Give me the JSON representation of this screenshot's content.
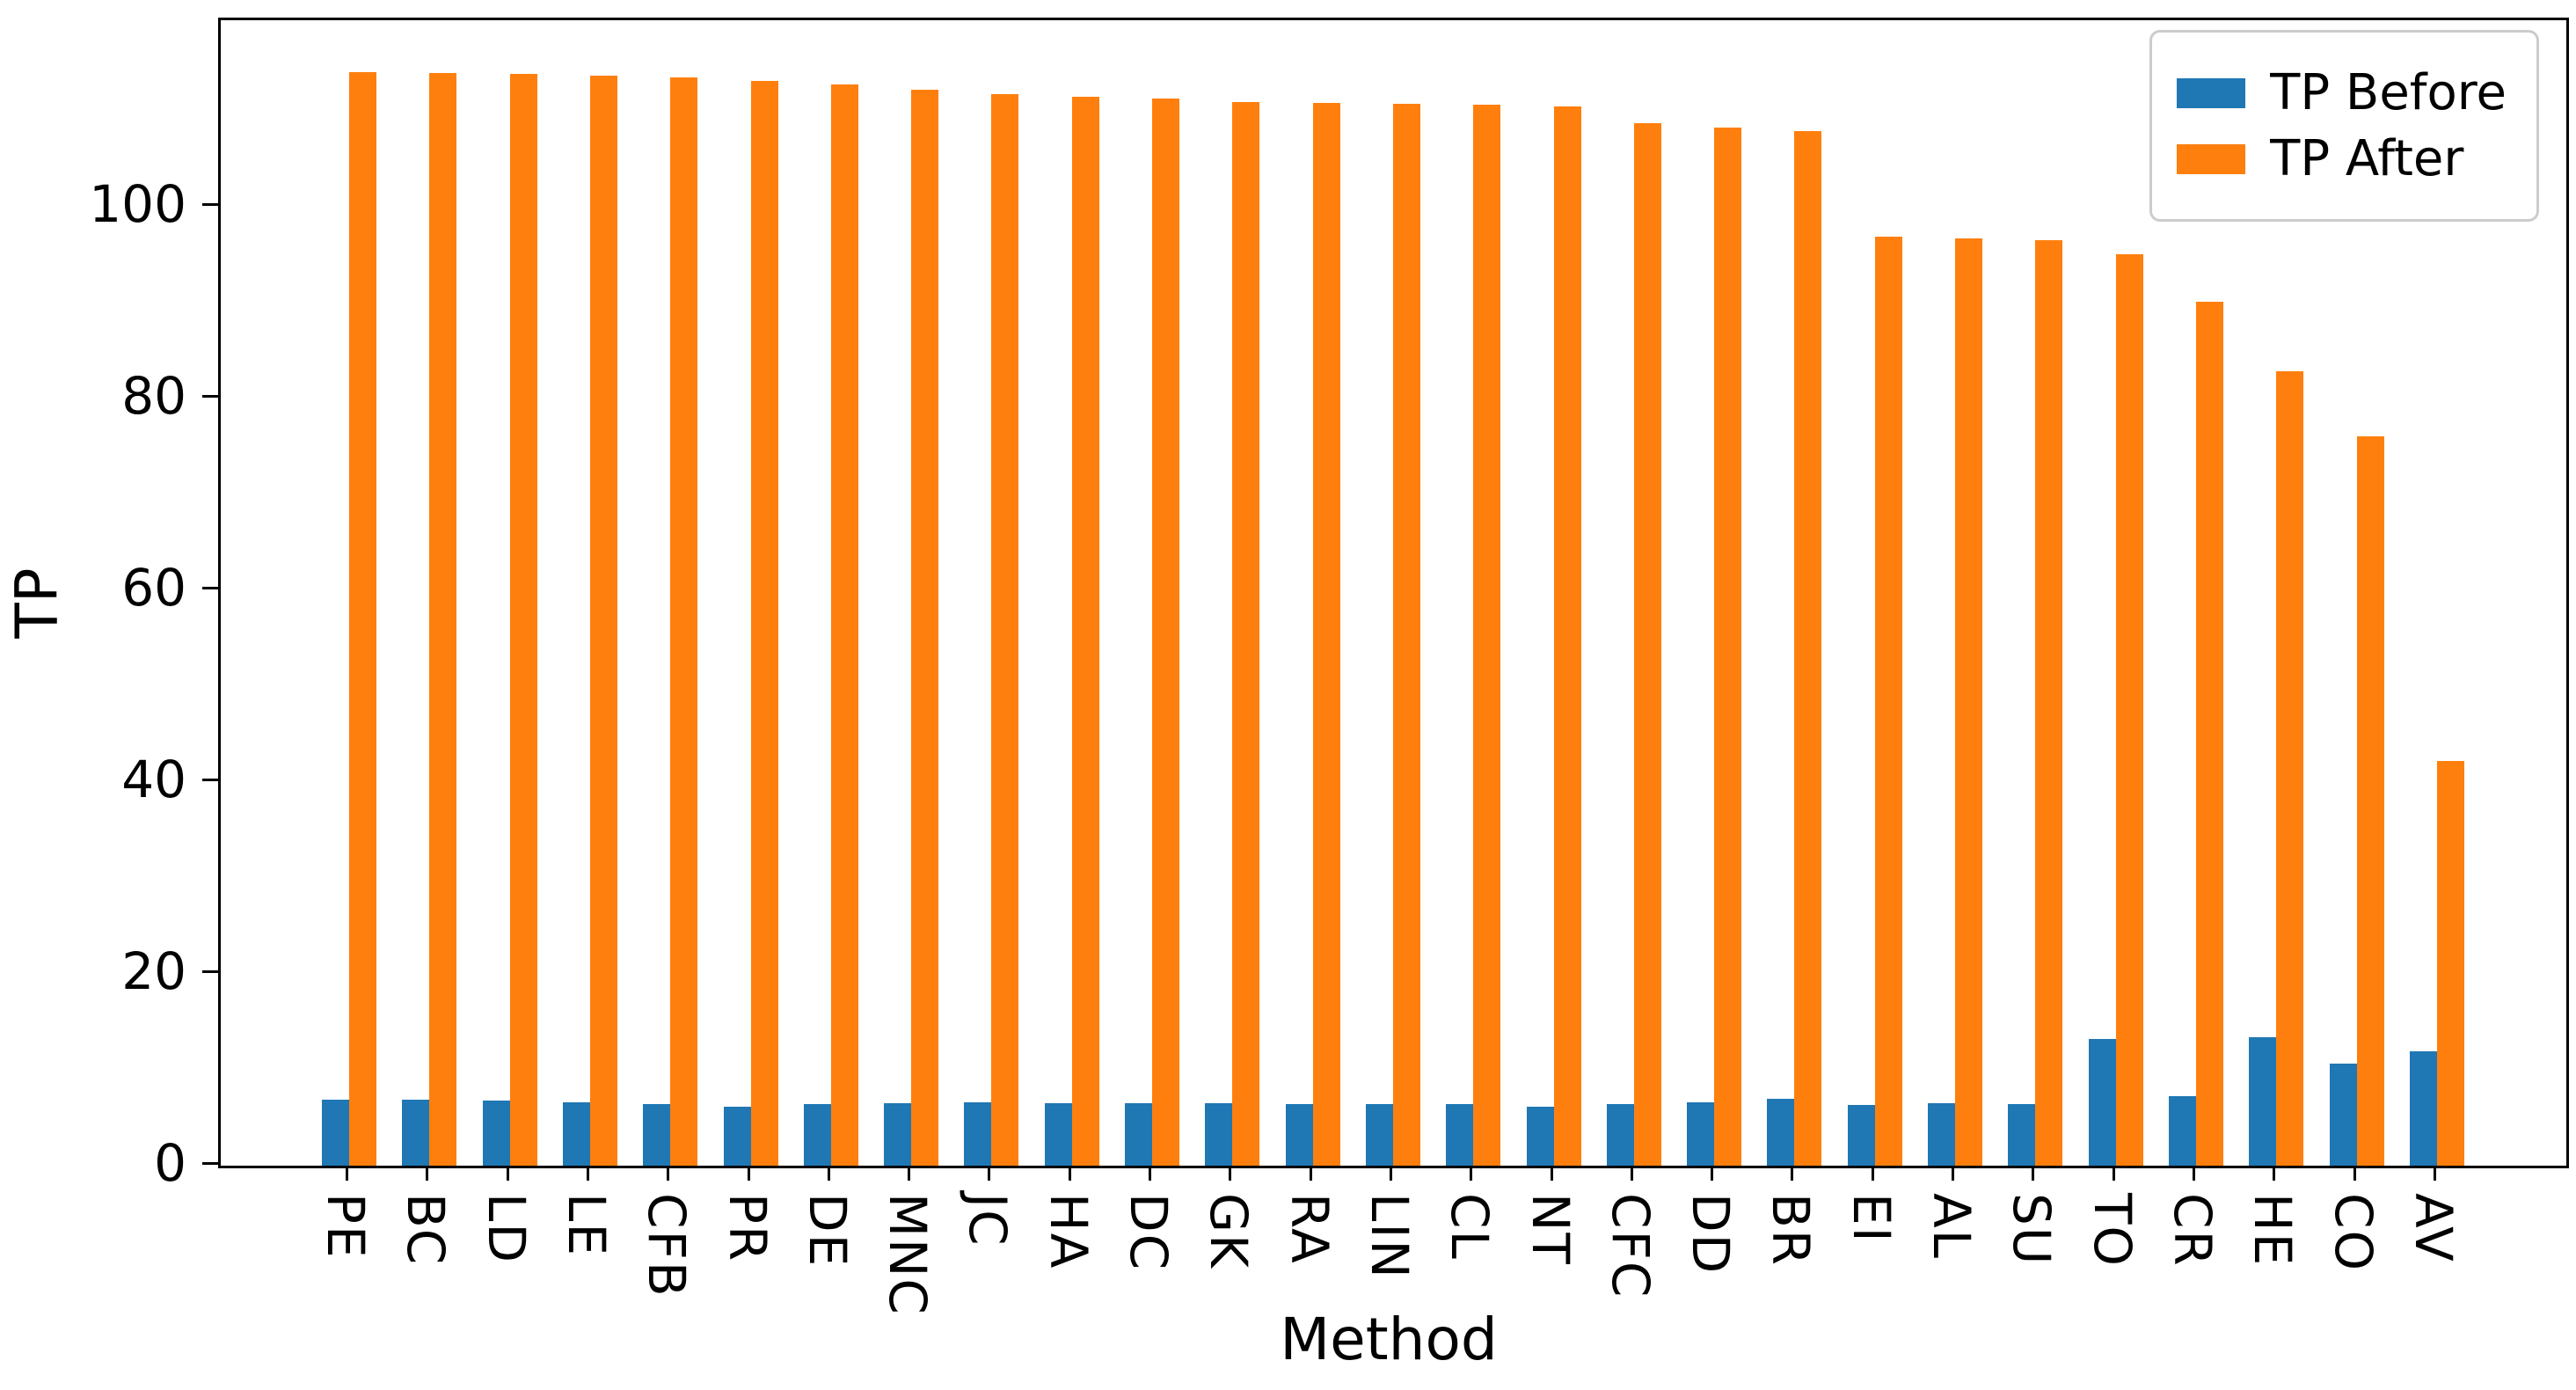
{
  "chart_data": {
    "type": "bar",
    "title": "",
    "xlabel": "Method",
    "ylabel": "TP",
    "categories": [
      "PE",
      "BC",
      "LD",
      "LE",
      "CFB",
      "PR",
      "DE",
      "MNC",
      "JC",
      "HA",
      "DC",
      "GK",
      "RA",
      "LIN",
      "CL",
      "NT",
      "CFC",
      "DD",
      "BR",
      "EI",
      "AL",
      "SU",
      "TO",
      "CR",
      "HE",
      "CO",
      "AV"
    ],
    "series": [
      {
        "name": "TP Before",
        "color": "#1f77b4",
        "values": [
          6.9,
          6.9,
          6.8,
          6.6,
          6.4,
          6.1,
          6.4,
          6.5,
          6.6,
          6.5,
          6.5,
          6.5,
          6.4,
          6.4,
          6.4,
          6.1,
          6.4,
          6.6,
          7.0,
          6.3,
          6.5,
          6.4,
          13.2,
          7.2,
          13.4,
          10.6,
          11.9
        ]
      },
      {
        "name": "TP After",
        "color": "#ff7f0e",
        "values": [
          114.0,
          113.9,
          113.8,
          113.6,
          113.4,
          113.1,
          112.7,
          112.2,
          111.7,
          111.4,
          111.2,
          110.9,
          110.8,
          110.7,
          110.6,
          110.4,
          108.7,
          108.2,
          107.8,
          96.8,
          96.7,
          96.5,
          95.0,
          90.1,
          82.8,
          76.0,
          42.2
        ]
      }
    ],
    "ylim": [
      0,
      119.4
    ],
    "yticks": [
      0,
      20,
      40,
      60,
      80,
      100
    ],
    "grid": false,
    "legend_position": "upper right",
    "x_tick_rotation": 90,
    "background": "#ffffff",
    "axis_color": "#000000"
  },
  "legend": {
    "items": [
      {
        "label": "TP Before",
        "color": "#1f77b4"
      },
      {
        "label": "TP After",
        "color": "#ff7f0e"
      }
    ]
  }
}
